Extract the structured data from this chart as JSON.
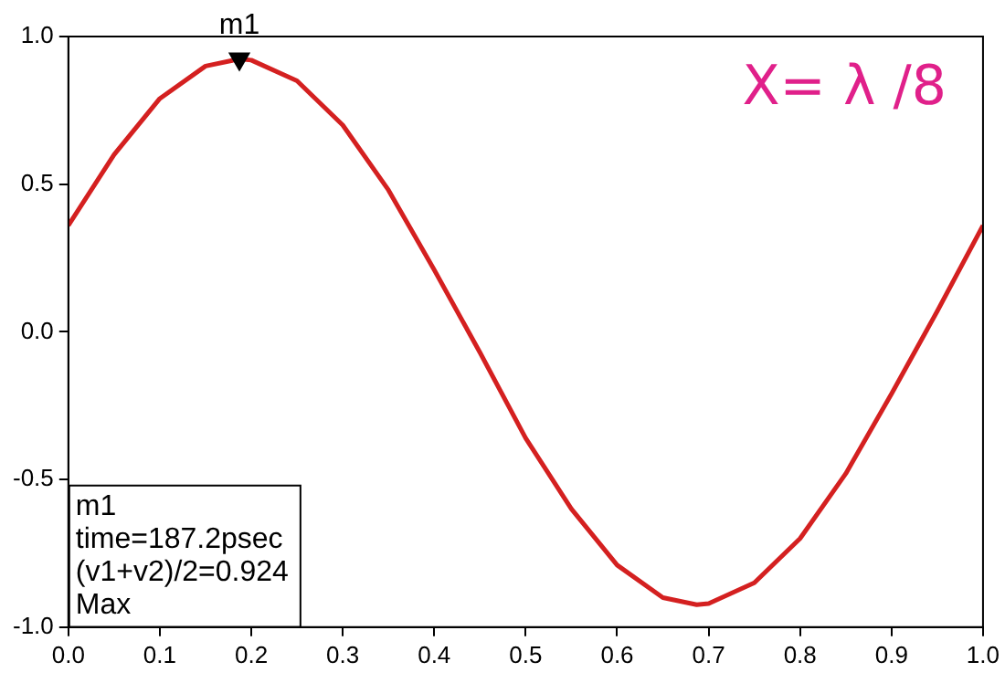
{
  "chart_data": {
    "type": "line",
    "title": "X= λ /8",
    "x": [
      0,
      0.05,
      0.1,
      0.15,
      0.187,
      0.2,
      0.25,
      0.3,
      0.35,
      0.4,
      0.45,
      0.5,
      0.55,
      0.6,
      0.65,
      0.687,
      0.7,
      0.75,
      0.8,
      0.85,
      0.9,
      0.95,
      1.0
    ],
    "series": [
      {
        "type": "scatter",
        "color": "#000000",
        "x": [
          0.187
        ],
        "values": [
          0.924
        ],
        "marker": "triangle"
      },
      {
        "color": "#d42020",
        "values": [
          0.36,
          0.6,
          0.79,
          0.9,
          0.924,
          0.92,
          0.85,
          0.7,
          0.48,
          0.21,
          -0.07,
          -0.36,
          -0.6,
          -0.79,
          -0.9,
          -0.924,
          -0.92,
          -0.85,
          -0.7,
          -0.48,
          -0.21,
          0.07,
          0.36
        ]
      }
    ],
    "xlim": [
      0,
      1
    ],
    "ylim": [
      -1,
      1
    ],
    "xticks": [
      {
        "value": 0,
        "label": "0.0"
      },
      {
        "value": 0.1,
        "label": "0.1"
      },
      {
        "value": 0.2,
        "label": "0.2"
      },
      {
        "value": 0.3,
        "label": "0.3"
      },
      {
        "value": 0.4,
        "label": "0.4"
      },
      {
        "value": 0.5,
        "label": "0.5"
      },
      {
        "value": 0.6,
        "label": "0.6"
      },
      {
        "value": 0.7,
        "label": "0.7"
      },
      {
        "value": 0.8,
        "label": "0.8"
      },
      {
        "value": 0.9,
        "label": "0.9"
      },
      {
        "value": 1,
        "label": "1.0"
      }
    ],
    "yticks": [
      {
        "value": -1,
        "label": "-1.0"
      },
      {
        "value": -0.5,
        "label": "-0.5"
      },
      {
        "value": 0,
        "label": "0.0"
      },
      {
        "value": 0.5,
        "label": "0.5"
      },
      {
        "value": 1,
        "label": "1.0"
      }
    ],
    "annotations": [
      {
        "text": "m1",
        "x": 0.187,
        "y": 0.924
      },
      "m1",
      "time=187.2psec",
      "(v1+v2)/2=0.924",
      "Max"
    ],
    "marker": "none",
    "line_style": "solid",
    "grid": false,
    "legend": false
  }
}
